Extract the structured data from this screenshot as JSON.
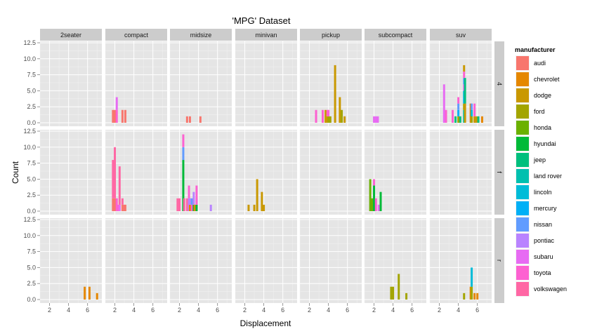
{
  "chart_data": {
    "type": "bar",
    "chart_kind": "faceted stacked histogram",
    "title": "'MPG' Dataset",
    "xlabel": "Displacement",
    "ylabel": "Count",
    "xlim": [
      1,
      7.5
    ],
    "ylim": [
      0,
      12.5
    ],
    "xticks": [
      2,
      4,
      6
    ],
    "yticks": [
      "0.0",
      "2.5",
      "5.0",
      "7.5",
      "10.0",
      "12.5"
    ],
    "bin_width": 0.2,
    "grid": true,
    "col_facets": [
      "2seater",
      "compact",
      "midsize",
      "minivan",
      "pickup",
      "subcompact",
      "suv"
    ],
    "row_facets": [
      "4",
      "f",
      "r"
    ],
    "legend": {
      "title": "manufacturer",
      "position": "right",
      "entries": [
        {
          "name": "audi",
          "color": "#F8766D"
        },
        {
          "name": "chevrolet",
          "color": "#E58700"
        },
        {
          "name": "dodge",
          "color": "#C99800"
        },
        {
          "name": "ford",
          "color": "#A3A500"
        },
        {
          "name": "honda",
          "color": "#6BB100"
        },
        {
          "name": "hyundai",
          "color": "#00BA38"
        },
        {
          "name": "jeep",
          "color": "#00BF7D"
        },
        {
          "name": "land rover",
          "color": "#00C0AF"
        },
        {
          "name": "lincoln",
          "color": "#00BCD8"
        },
        {
          "name": "mercury",
          "color": "#00B0F6"
        },
        {
          "name": "nissan",
          "color": "#619CFF"
        },
        {
          "name": "pontiac",
          "color": "#B983FF"
        },
        {
          "name": "subaru",
          "color": "#E76BF3"
        },
        {
          "name": "toyota",
          "color": "#FD61D1"
        },
        {
          "name": "volkswagen",
          "color": "#FF67A4"
        }
      ]
    },
    "facets": [
      {
        "row": "4",
        "col": "compact",
        "bars": [
          {
            "x": 1.8,
            "stack": [
              [
                "audi",
                2
              ]
            ]
          },
          {
            "x": 2.0,
            "stack": [
              [
                "audi",
                2
              ]
            ]
          },
          {
            "x": 2.2,
            "stack": [
              [
                "toyota",
                2
              ],
              [
                "subaru",
                2
              ]
            ]
          },
          {
            "x": 2.8,
            "stack": [
              [
                "audi",
                2
              ]
            ]
          },
          {
            "x": 3.1,
            "stack": [
              [
                "audi",
                2
              ]
            ]
          }
        ]
      },
      {
        "row": "4",
        "col": "midsize",
        "bars": [
          {
            "x": 2.8,
            "stack": [
              [
                "audi",
                1
              ]
            ]
          },
          {
            "x": 3.1,
            "stack": [
              [
                "audi",
                1
              ]
            ]
          },
          {
            "x": 4.2,
            "stack": [
              [
                "audi",
                1
              ]
            ]
          }
        ]
      },
      {
        "row": "4",
        "col": "pickup",
        "bars": [
          {
            "x": 2.7,
            "stack": [
              [
                "toyota",
                2
              ]
            ]
          },
          {
            "x": 3.4,
            "stack": [
              [
                "toyota",
                2
              ]
            ]
          },
          {
            "x": 3.7,
            "stack": [
              [
                "dodge",
                2
              ]
            ]
          },
          {
            "x": 3.9,
            "stack": [
              [
                "dodge",
                1
              ],
              [
                "toyota",
                1
              ]
            ]
          },
          {
            "x": 4.0,
            "stack": [
              [
                "ford",
                1
              ],
              [
                "toyota",
                1
              ]
            ]
          },
          {
            "x": 4.2,
            "stack": [
              [
                "ford",
                1
              ]
            ]
          },
          {
            "x": 4.7,
            "stack": [
              [
                "dodge",
                9
              ]
            ]
          },
          {
            "x": 5.2,
            "stack": [
              [
                "dodge",
                4
              ]
            ]
          },
          {
            "x": 5.4,
            "stack": [
              [
                "ford",
                2
              ]
            ]
          },
          {
            "x": 5.7,
            "stack": [
              [
                "dodge",
                1
              ]
            ]
          }
        ]
      },
      {
        "row": "4",
        "col": "subcompact",
        "bars": [
          {
            "x": 2.0,
            "stack": [
              [
                "subaru",
                1
              ]
            ]
          },
          {
            "x": 2.2,
            "stack": [
              [
                "subaru",
                1
              ]
            ]
          },
          {
            "x": 2.4,
            "stack": [
              [
                "subaru",
                1
              ]
            ]
          }
        ]
      },
      {
        "row": "4",
        "col": "suv",
        "bars": [
          {
            "x": 2.5,
            "stack": [
              [
                "subaru",
                6
              ]
            ]
          },
          {
            "x": 2.7,
            "stack": [
              [
                "toyota",
                2
              ]
            ]
          },
          {
            "x": 3.4,
            "stack": [
              [
                "toyota",
                2
              ]
            ]
          },
          {
            "x": 3.7,
            "stack": [
              [
                "jeep",
                1
              ]
            ]
          },
          {
            "x": 4.0,
            "stack": [
              [
                "ford",
                1
              ],
              [
                "mercury",
                1
              ],
              [
                "nissan",
                1
              ],
              [
                "toyota",
                1
              ]
            ]
          },
          {
            "x": 4.2,
            "stack": [
              [
                "jeep",
                1
              ]
            ]
          },
          {
            "x": 4.6,
            "stack": [
              [
                "land rover",
                2
              ],
              [
                "ford",
                1
              ],
              [
                "mercury",
                1
              ],
              [
                "lincoln",
                1
              ],
              [
                "subaru",
                1
              ],
              [
                "nissan",
                1
              ],
              [
                "toyota",
                1
              ],
              [
                "dodge",
                1
              ]
            ]
          },
          {
            "x": 4.7,
            "stack": [
              [
                "dodge",
                3
              ],
              [
                "jeep",
                4
              ]
            ]
          },
          {
            "x": 5.3,
            "stack": [
              [
                "chevrolet",
                3
              ]
            ]
          },
          {
            "x": 5.4,
            "stack": [
              [
                "ford",
                1
              ],
              [
                "lincoln",
                1
              ],
              [
                "nissan",
                1
              ]
            ]
          },
          {
            "x": 5.7,
            "stack": [
              [
                "dodge",
                1
              ],
              [
                "toyota",
                2
              ]
            ]
          },
          {
            "x": 5.9,
            "stack": [
              [
                "dodge",
                1
              ]
            ]
          },
          {
            "x": 6.1,
            "stack": [
              [
                "jeep",
                1
              ]
            ]
          },
          {
            "x": 6.5,
            "stack": [
              [
                "chevrolet",
                1
              ]
            ]
          }
        ]
      },
      {
        "row": "f",
        "col": "compact",
        "bars": [
          {
            "x": 1.8,
            "stack": [
              [
                "audi",
                2
              ],
              [
                "volkswagen",
                6
              ]
            ]
          },
          {
            "x": 2.0,
            "stack": [
              [
                "audi",
                2
              ],
              [
                "volkswagen",
                8
              ]
            ]
          },
          {
            "x": 2.2,
            "stack": [
              [
                "toyota",
                2
              ]
            ]
          },
          {
            "x": 2.4,
            "stack": [
              [
                "toyota",
                1
              ]
            ]
          },
          {
            "x": 2.5,
            "stack": [
              [
                "subaru",
                1
              ],
              [
                "volkswagen",
                6
              ]
            ]
          },
          {
            "x": 2.8,
            "stack": [
              [
                "audi",
                1
              ],
              [
                "volkswagen",
                1
              ]
            ]
          },
          {
            "x": 3.0,
            "stack": [
              [
                "audi",
                1
              ]
            ]
          },
          {
            "x": 3.1,
            "stack": [
              [
                "audi",
                1
              ]
            ]
          }
        ]
      },
      {
        "row": "f",
        "col": "midsize",
        "bars": [
          {
            "x": 1.8,
            "stack": [
              [
                "volkswagen",
                2
              ]
            ]
          },
          {
            "x": 2.0,
            "stack": [
              [
                "volkswagen",
                2
              ]
            ]
          },
          {
            "x": 2.4,
            "stack": [
              [
                "hyundai",
                8
              ],
              [
                "nissan",
                2
              ],
              [
                "toyota",
                2
              ]
            ]
          },
          {
            "x": 2.5,
            "stack": [
              [
                "volkswagen",
                2
              ]
            ]
          },
          {
            "x": 2.8,
            "stack": [
              [
                "volkswagen",
                2
              ]
            ]
          },
          {
            "x": 3.0,
            "stack": [
              [
                "pontiac",
                2
              ],
              [
                "toyota",
                2
              ]
            ]
          },
          {
            "x": 3.1,
            "stack": [
              [
                "chevrolet",
                1
              ],
              [
                "pontiac",
                1
              ]
            ]
          },
          {
            "x": 3.3,
            "stack": [
              [
                "toyota",
                1
              ],
              [
                "nissan",
                1
              ]
            ]
          },
          {
            "x": 3.5,
            "stack": [
              [
                "hyundai",
                1
              ],
              [
                "pontiac",
                2
              ]
            ]
          },
          {
            "x": 3.6,
            "stack": [
              [
                "chevrolet",
                1
              ]
            ]
          },
          {
            "x": 3.8,
            "stack": [
              [
                "pontiac",
                2
              ]
            ]
          },
          {
            "x": 3.8,
            "stack": [
              [
                "hyundai",
                1
              ],
              [
                "toyota",
                3
              ]
            ]
          },
          {
            "x": 5.3,
            "stack": [
              [
                "pontiac",
                1
              ]
            ]
          }
        ]
      },
      {
        "row": "f",
        "col": "minivan",
        "bars": [
          {
            "x": 2.4,
            "stack": [
              [
                "dodge",
                1
              ]
            ]
          },
          {
            "x": 3.0,
            "stack": [
              [
                "dodge",
                1
              ]
            ]
          },
          {
            "x": 3.3,
            "stack": [
              [
                "dodge",
                5
              ]
            ]
          },
          {
            "x": 3.8,
            "stack": [
              [
                "dodge",
                3
              ]
            ]
          },
          {
            "x": 4.0,
            "stack": [
              [
                "dodge",
                1
              ]
            ]
          }
        ]
      },
      {
        "row": "f",
        "col": "subcompact",
        "bars": [
          {
            "x": 1.6,
            "stack": [
              [
                "honda",
                5
              ]
            ]
          },
          {
            "x": 1.8,
            "stack": [
              [
                "honda",
                2
              ]
            ]
          },
          {
            "x": 2.0,
            "stack": [
              [
                "hyundai",
                4
              ],
              [
                "toyota",
                1
              ]
            ]
          },
          {
            "x": 2.2,
            "stack": [
              [
                "toyota",
                2
              ]
            ]
          },
          {
            "x": 2.5,
            "stack": [
              [
                "subaru",
                1
              ]
            ]
          },
          {
            "x": 2.7,
            "stack": [
              [
                "hyundai",
                3
              ]
            ]
          }
        ]
      },
      {
        "row": "r",
        "col": "2seater",
        "bars": [
          {
            "x": 5.7,
            "stack": [
              [
                "chevrolet",
                2
              ]
            ]
          },
          {
            "x": 6.2,
            "stack": [
              [
                "chevrolet",
                2
              ]
            ]
          },
          {
            "x": 7.0,
            "stack": [
              [
                "chevrolet",
                1
              ]
            ]
          }
        ]
      },
      {
        "row": "r",
        "col": "subcompact",
        "bars": [
          {
            "x": 3.8,
            "stack": [
              [
                "ford",
                2
              ]
            ]
          },
          {
            "x": 4.0,
            "stack": [
              [
                "ford",
                2
              ]
            ]
          },
          {
            "x": 4.6,
            "stack": [
              [
                "ford",
                4
              ]
            ]
          },
          {
            "x": 5.4,
            "stack": [
              [
                "ford",
                1
              ]
            ]
          }
        ]
      },
      {
        "row": "r",
        "col": "suv",
        "bars": [
          {
            "x": 4.6,
            "stack": [
              [
                "ford",
                1
              ]
            ]
          },
          {
            "x": 5.3,
            "stack": [
              [
                "chevrolet",
                2
              ]
            ]
          },
          {
            "x": 5.4,
            "stack": [
              [
                "ford",
                2
              ],
              [
                "lincoln",
                3
              ]
            ]
          },
          {
            "x": 5.7,
            "stack": [
              [
                "chevrolet",
                1
              ]
            ]
          },
          {
            "x": 6.0,
            "stack": [
              [
                "chevrolet",
                1
              ]
            ]
          }
        ]
      }
    ]
  }
}
